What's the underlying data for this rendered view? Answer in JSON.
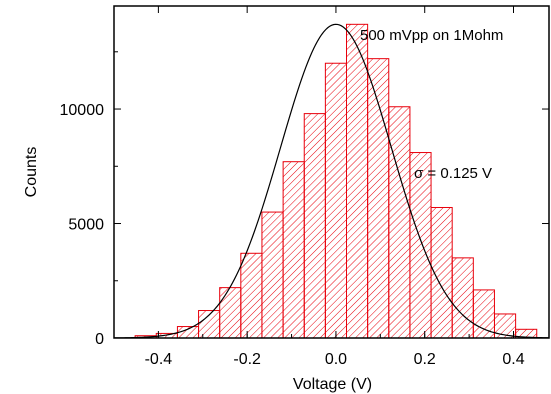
{
  "chart_data": {
    "type": "bar",
    "annotation_title": "500 mVpp on 1Mohm",
    "annotation_sigma": "σ = 0.125 V",
    "xlabel": "Voltage (V)",
    "ylabel": "Counts",
    "xlim": [
      -0.5,
      0.48
    ],
    "ylim": [
      0,
      14500
    ],
    "x_ticks": [
      -0.4,
      -0.2,
      0.0,
      0.2,
      0.4
    ],
    "x_tick_labels": [
      "-0.4",
      "-0.2",
      "0.0",
      "0.2",
      "0.4"
    ],
    "y_ticks": [
      0,
      5000,
      10000
    ],
    "y_tick_labels": [
      "0",
      "5000",
      "10000"
    ],
    "bin_width": 0.0476,
    "bin_centers": [
      -0.4286,
      -0.381,
      -0.3333,
      -0.2857,
      -0.2381,
      -0.1905,
      -0.1429,
      -0.0952,
      -0.0476,
      0.0,
      0.0476,
      0.0952,
      0.1429,
      0.1905,
      0.2381,
      0.2857,
      0.3333,
      0.381,
      0.4286
    ],
    "counts": [
      100,
      200,
      500,
      1200,
      2200,
      3700,
      5500,
      7700,
      9800,
      12000,
      13700,
      12200,
      10100,
      8100,
      5700,
      3500,
      2100,
      1050,
      380
    ],
    "fit": {
      "type": "gaussian",
      "amplitude": 13700,
      "mean": 0.0,
      "sigma": 0.125
    },
    "grid": false,
    "legend": "none",
    "colors": {
      "bar_edge": "#e8000b",
      "hatch": "#e8000b",
      "fit_line": "#000000"
    }
  }
}
